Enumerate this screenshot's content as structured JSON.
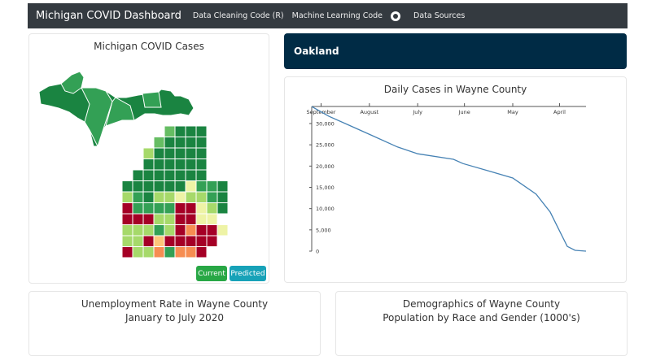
{
  "navbar": {
    "brand": "Michigan COVID Dashboard",
    "links": [
      "Data Cleaning Code (R)",
      "Machine Learning Code",
      "Data Sources"
    ],
    "github_icon": "github-icon",
    "bg": "#343a40"
  },
  "map_card": {
    "title": "Michigan COVID Cases",
    "buttons": {
      "current": "Current",
      "predicted": "Predicted"
    },
    "button_colors": {
      "current": "#28a745",
      "predicted": "#17a2b8"
    },
    "palette": {
      "D": "#1a8441",
      "G": "#33a055",
      "g": "#66bd63",
      "l": "#a6d96a",
      "y": "#eef3a6",
      "o": "#fdc67a",
      "O": "#f68d52",
      "R": "#a50026"
    }
  },
  "selected_county": {
    "name": "Oakland",
    "bg": "#002b45"
  },
  "chart_card": {
    "title": "Daily Cases in Wayne County"
  },
  "chart_data": {
    "type": "line",
    "title": "Daily Cases in Wayne County",
    "xlabel": "",
    "ylabel": "",
    "x_axis": "time, reversed, ticks at top",
    "x_ticks": [
      "September",
      "August",
      "July",
      "June",
      "May",
      "April"
    ],
    "y_ticks": [
      "0",
      "5,000",
      "10,000",
      "15,000",
      "20,000",
      "25,000",
      "30,000"
    ],
    "ylim": [
      0,
      34000
    ],
    "xlim": [
      "2020-09-07",
      "2020-03-15"
    ],
    "grid": false,
    "line_color": "#4682b4",
    "series": [
      {
        "x": [
          "2020-09-07",
          "2020-08-27",
          "2020-08-14",
          "2020-07-31",
          "2020-07-14",
          "2020-07-01",
          "2020-06-08",
          "2020-06-02",
          "2020-05-15",
          "2020-05-01",
          "2020-04-16",
          "2020-04-07",
          "2020-04-01",
          "2020-03-27",
          "2020-03-22",
          "2020-03-15"
        ],
        "y": [
          34000,
          31700,
          29600,
          27300,
          24500,
          22900,
          21600,
          20600,
          18700,
          17200,
          13400,
          9200,
          4800,
          1100,
          200,
          0
        ]
      }
    ]
  },
  "bottom": {
    "unemployment": {
      "title": "Unemployment Rate in Wayne County",
      "subtitle": "January to July 2020"
    },
    "demographics": {
      "title": "Demographics of Wayne County",
      "subtitle": "Population by Race and Gender (1000's)"
    }
  }
}
